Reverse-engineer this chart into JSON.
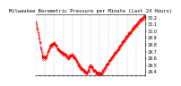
{
  "title": "Milwaukee Barometric Pressure per Minute (Last 24 Hours)",
  "line_color": "#ff0000",
  "background_color": "#ffffff",
  "grid_color": "#b0b0b0",
  "ylim": [
    29.35,
    30.25
  ],
  "yticks": [
    29.4,
    29.5,
    29.6,
    29.7,
    29.8,
    29.9,
    30.0,
    30.1,
    30.2
  ],
  "ylabel_fontsize": 3.5,
  "title_fontsize": 4.0,
  "num_points": 1440,
  "num_xgrid": 12,
  "waypoints_t": [
    0,
    0.03,
    0.06,
    0.09,
    0.13,
    0.17,
    0.21,
    0.24,
    0.27,
    0.3,
    0.33,
    0.36,
    0.39,
    0.43,
    0.47,
    0.5,
    0.53,
    0.57,
    0.6,
    0.65,
    0.7,
    0.75,
    0.8,
    0.85,
    0.9,
    0.95,
    1.0
  ],
  "waypoints_v": [
    30.14,
    29.9,
    29.62,
    29.6,
    29.78,
    29.82,
    29.72,
    29.68,
    29.65,
    29.6,
    29.65,
    29.6,
    29.5,
    29.42,
    29.38,
    29.5,
    29.42,
    29.37,
    29.37,
    29.5,
    29.62,
    29.72,
    29.85,
    29.95,
    30.05,
    30.15,
    30.22
  ],
  "noise_std": 0.012,
  "noise_seed": 17
}
